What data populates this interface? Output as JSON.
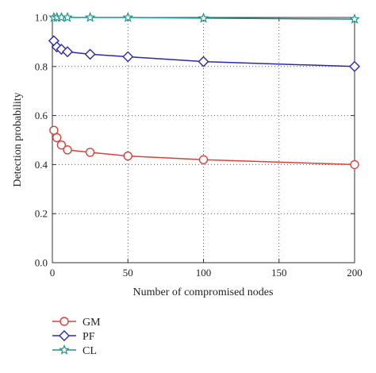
{
  "chart_data": {
    "type": "line",
    "xlabel": "Number of compromised nodes",
    "ylabel": "Detection probability",
    "xlim": [
      0,
      200
    ],
    "ylim": [
      0,
      1.0
    ],
    "xticks": [
      "0",
      "50",
      "100",
      "150",
      "200"
    ],
    "yticks": [
      "0.0",
      "0.2",
      "0.4",
      "0.6",
      "0.8",
      "1.0"
    ],
    "grid": true,
    "legend_position": "bottom-left",
    "series": [
      {
        "name": "GM",
        "marker": "circle",
        "color": "#d9413a",
        "x": [
          1,
          3,
          6,
          10,
          25,
          50,
          100,
          200
        ],
        "y": [
          0.54,
          0.51,
          0.48,
          0.46,
          0.45,
          0.435,
          0.42,
          0.4
        ]
      },
      {
        "name": "PF",
        "marker": "diamond",
        "color": "#2a2aa8",
        "x": [
          1,
          3,
          6,
          10,
          25,
          50,
          100,
          200
        ],
        "y": [
          0.905,
          0.88,
          0.87,
          0.86,
          0.85,
          0.84,
          0.82,
          0.8
        ]
      },
      {
        "name": "CL",
        "marker": "star",
        "color": "#1f8f8a",
        "x": [
          1,
          3,
          6,
          10,
          25,
          50,
          100,
          200
        ],
        "y": [
          1.0,
          1.0,
          1.0,
          1.0,
          1.0,
          1.0,
          0.997,
          0.993
        ]
      }
    ]
  }
}
